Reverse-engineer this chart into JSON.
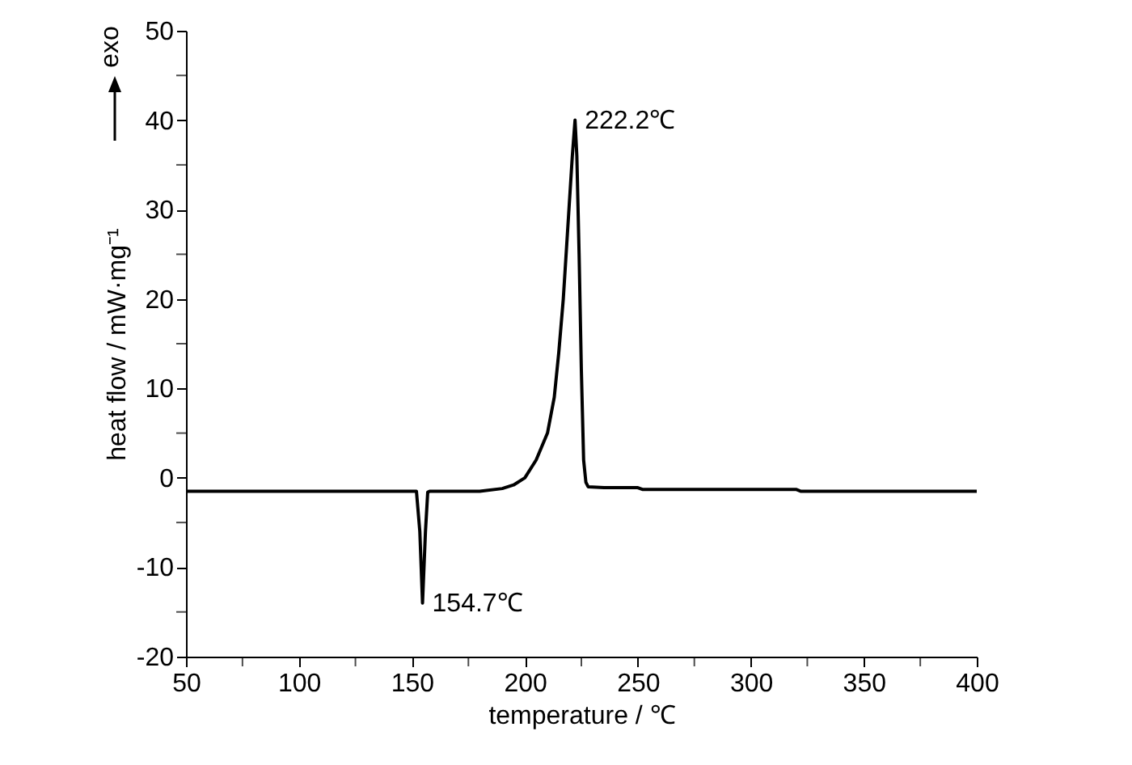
{
  "chart_data": {
    "type": "line",
    "xlabel": "temperature / ℃",
    "ylabel": "heat flow / mW·mg⁻¹",
    "annotations": [
      "exo",
      {
        "text": "222.2℃",
        "x": 222.2,
        "y": 40
      },
      {
        "text": "154.7℃",
        "x": 154.7,
        "y": -14
      }
    ],
    "xlim": [
      50,
      400
    ],
    "ylim": [
      -20,
      50
    ],
    "xticks": [
      50,
      {
        "value": 75,
        "label": null
      },
      100,
      {
        "value": 125,
        "label": null
      },
      150,
      {
        "value": 175,
        "label": null
      },
      200,
      {
        "value": 225,
        "label": null
      },
      250,
      {
        "value": 275,
        "label": null
      },
      300,
      {
        "value": 325,
        "label": null
      },
      350,
      {
        "value": 375,
        "label": null
      },
      400
    ],
    "yticks": [
      -20,
      {
        "value": -15,
        "label": null
      },
      -10,
      {
        "value": -5,
        "label": null
      },
      0,
      {
        "value": 5,
        "label": null
      },
      10,
      {
        "value": 15,
        "label": null
      },
      20,
      {
        "value": 25,
        "label": null
      },
      30,
      {
        "value": 35,
        "label": null
      },
      40,
      {
        "value": 45,
        "label": null
      },
      50
    ],
    "grid": false,
    "legend": false,
    "marker": "none",
    "line_style": "solid",
    "series": [
      {
        "color": "#000000",
        "x": [
          50,
          100,
          150,
          152,
          153.5,
          154.7,
          156,
          157,
          158,
          180,
          190,
          195,
          200,
          205,
          210,
          213,
          215,
          217,
          219,
          220,
          221,
          222.2,
          223,
          224,
          225,
          226,
          227,
          228,
          235,
          250,
          252,
          300,
          320,
          322,
          400
        ],
        "values": [
          -1.5,
          -1.5,
          -1.5,
          -1.5,
          -6,
          -14,
          -6,
          -1.6,
          -1.5,
          -1.5,
          -1.2,
          -0.8,
          0,
          2,
          5,
          9,
          14,
          20,
          28,
          32,
          36,
          40,
          36,
          25,
          12,
          2,
          -0.5,
          -1.0,
          -1.1,
          -1.1,
          -1.3,
          -1.3,
          -1.3,
          -1.5,
          -1.5
        ]
      }
    ]
  }
}
